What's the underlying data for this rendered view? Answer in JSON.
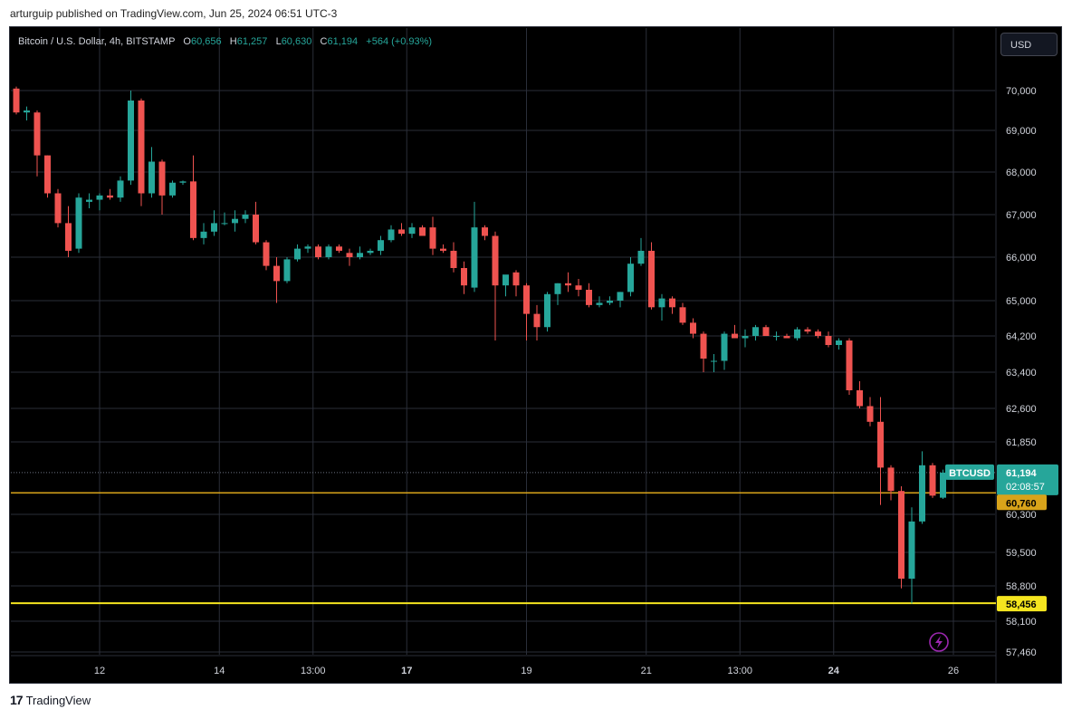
{
  "publisher_line": "arturguip published on TradingView.com, Jun 25, 2024 06:51 UTC-3",
  "legend": {
    "symbol": "Bitcoin / U.S. Dollar, 4h, BITSTAMP",
    "o_label": "O",
    "o_value": "60,656",
    "h_label": "H",
    "h_value": "61,257",
    "l_label": "L",
    "l_value": "60,630",
    "c_label": "C",
    "c_value": "61,194",
    "change": "+564 (+0.93%)"
  },
  "currency_button": "USD",
  "brand": "TradingView",
  "colors": {
    "up": "#26a69a",
    "down": "#ef5350",
    "orange_line": "#d8a31a",
    "yellow_line": "#f5e51f",
    "grid": "#2a2e39",
    "axis_text": "#d1d4dc"
  },
  "chart_data": {
    "type": "candlestick",
    "symbol": "BTCUSD",
    "timeframe": "4h",
    "y_ticks": [
      "70,000",
      "69,000",
      "68,000",
      "67,000",
      "66,000",
      "65,000",
      "64,200",
      "63,400",
      "62,600",
      "61,850",
      "60,300",
      "59,500",
      "58,800",
      "58,100",
      "57,460"
    ],
    "y_tick_values": [
      70000,
      69000,
      68000,
      67000,
      66000,
      65000,
      64200,
      63400,
      62600,
      61850,
      60300,
      59500,
      58800,
      58100,
      57460
    ],
    "x_ticks": [
      {
        "label": "12",
        "bold": false,
        "bar": 8
      },
      {
        "label": "14",
        "bold": false,
        "bar": 19.5
      },
      {
        "label": "13:00",
        "bold": false,
        "bar": 28.5
      },
      {
        "label": "17",
        "bold": true,
        "bar": 37.5
      },
      {
        "label": "19",
        "bold": false,
        "bar": 49
      },
      {
        "label": "21",
        "bold": false,
        "bar": 60.5
      },
      {
        "label": "13:00",
        "bold": false,
        "bar": 69.5
      },
      {
        "label": "24",
        "bold": true,
        "bar": 78.5
      },
      {
        "label": "26",
        "bold": false,
        "bar": 90
      }
    ],
    "price_labels": {
      "last": {
        "symbol": "BTCUSD",
        "price": "61,194",
        "countdown": "02:08:57",
        "value": 61194
      },
      "orange": {
        "price": "60,760",
        "value": 60760
      },
      "yellow": {
        "price": "58,456",
        "value": 58456
      }
    },
    "candles": [
      {
        "o": 70050,
        "h": 70100,
        "l": 69400,
        "c": 69450
      },
      {
        "o": 69450,
        "h": 69600,
        "l": 69250,
        "c": 69500
      },
      {
        "o": 69450,
        "h": 69500,
        "l": 67900,
        "c": 68400
      },
      {
        "o": 68400,
        "h": 68400,
        "l": 67400,
        "c": 67500
      },
      {
        "o": 67500,
        "h": 67600,
        "l": 66700,
        "c": 66800
      },
      {
        "o": 66800,
        "h": 67200,
        "l": 66000,
        "c": 66150
      },
      {
        "o": 66200,
        "h": 67500,
        "l": 66100,
        "c": 67400
      },
      {
        "o": 67300,
        "h": 67500,
        "l": 67150,
        "c": 67350
      },
      {
        "o": 67350,
        "h": 67500,
        "l": 67100,
        "c": 67450
      },
      {
        "o": 67450,
        "h": 67600,
        "l": 67350,
        "c": 67400
      },
      {
        "o": 67400,
        "h": 67900,
        "l": 67300,
        "c": 67800
      },
      {
        "o": 67800,
        "h": 70000,
        "l": 67700,
        "c": 69750
      },
      {
        "o": 69750,
        "h": 69800,
        "l": 67200,
        "c": 67500
      },
      {
        "o": 67500,
        "h": 68600,
        "l": 67400,
        "c": 68250
      },
      {
        "o": 68250,
        "h": 68300,
        "l": 67000,
        "c": 67450
      },
      {
        "o": 67450,
        "h": 67800,
        "l": 67400,
        "c": 67750
      },
      {
        "o": 67750,
        "h": 67800,
        "l": 67700,
        "c": 67780
      },
      {
        "o": 67780,
        "h": 68400,
        "l": 66400,
        "c": 66450
      },
      {
        "o": 66450,
        "h": 66800,
        "l": 66300,
        "c": 66600
      },
      {
        "o": 66600,
        "h": 67100,
        "l": 66500,
        "c": 66800
      },
      {
        "o": 66800,
        "h": 67050,
        "l": 66750,
        "c": 66800
      },
      {
        "o": 66800,
        "h": 67100,
        "l": 66600,
        "c": 66900
      },
      {
        "o": 66900,
        "h": 67100,
        "l": 66800,
        "c": 67000
      },
      {
        "o": 67000,
        "h": 67300,
        "l": 66300,
        "c": 66350
      },
      {
        "o": 66350,
        "h": 66400,
        "l": 65700,
        "c": 65800
      },
      {
        "o": 65800,
        "h": 66000,
        "l": 64950,
        "c": 65450
      },
      {
        "o": 65450,
        "h": 66000,
        "l": 65400,
        "c": 65950
      },
      {
        "o": 65950,
        "h": 66300,
        "l": 65900,
        "c": 66200
      },
      {
        "o": 66200,
        "h": 66300,
        "l": 66100,
        "c": 66250
      },
      {
        "o": 66250,
        "h": 66300,
        "l": 65950,
        "c": 66000
      },
      {
        "o": 66000,
        "h": 66300,
        "l": 65950,
        "c": 66250
      },
      {
        "o": 66250,
        "h": 66300,
        "l": 66100,
        "c": 66150
      },
      {
        "o": 66100,
        "h": 66200,
        "l": 65800,
        "c": 66000
      },
      {
        "o": 66000,
        "h": 66250,
        "l": 65950,
        "c": 66100
      },
      {
        "o": 66100,
        "h": 66200,
        "l": 66050,
        "c": 66150
      },
      {
        "o": 66150,
        "h": 66500,
        "l": 66050,
        "c": 66400
      },
      {
        "o": 66400,
        "h": 66750,
        "l": 66350,
        "c": 66650
      },
      {
        "o": 66650,
        "h": 66800,
        "l": 66500,
        "c": 66550
      },
      {
        "o": 66550,
        "h": 66800,
        "l": 66450,
        "c": 66700
      },
      {
        "o": 66700,
        "h": 66750,
        "l": 66500,
        "c": 66500
      },
      {
        "o": 66700,
        "h": 66950,
        "l": 66050,
        "c": 66200
      },
      {
        "o": 66200,
        "h": 66300,
        "l": 66100,
        "c": 66150
      },
      {
        "o": 66150,
        "h": 66350,
        "l": 65650,
        "c": 65750
      },
      {
        "o": 65750,
        "h": 65900,
        "l": 65150,
        "c": 65350
      },
      {
        "o": 65300,
        "h": 67300,
        "l": 65200,
        "c": 66700
      },
      {
        "o": 66700,
        "h": 66750,
        "l": 66400,
        "c": 66500
      },
      {
        "o": 66500,
        "h": 66600,
        "l": 64100,
        "c": 65350
      },
      {
        "o": 65350,
        "h": 65500,
        "l": 65100,
        "c": 65600
      },
      {
        "o": 65650,
        "h": 65700,
        "l": 65100,
        "c": 65350
      },
      {
        "o": 65350,
        "h": 65400,
        "l": 64100,
        "c": 64700
      },
      {
        "o": 64700,
        "h": 64900,
        "l": 64100,
        "c": 64400
      },
      {
        "o": 64400,
        "h": 65200,
        "l": 64300,
        "c": 65150
      },
      {
        "o": 65150,
        "h": 65400,
        "l": 64900,
        "c": 65400
      },
      {
        "o": 65400,
        "h": 65650,
        "l": 65200,
        "c": 65350
      },
      {
        "o": 65350,
        "h": 65500,
        "l": 65100,
        "c": 65250
      },
      {
        "o": 65250,
        "h": 65400,
        "l": 64850,
        "c": 64900
      },
      {
        "o": 64900,
        "h": 65100,
        "l": 64850,
        "c": 64950
      },
      {
        "o": 64950,
        "h": 65100,
        "l": 64900,
        "c": 65000
      },
      {
        "o": 65000,
        "h": 65200,
        "l": 64850,
        "c": 65200
      },
      {
        "o": 65200,
        "h": 66000,
        "l": 65100,
        "c": 65850
      },
      {
        "o": 65850,
        "h": 66450,
        "l": 65800,
        "c": 66150
      },
      {
        "o": 66150,
        "h": 66350,
        "l": 64800,
        "c": 64850
      },
      {
        "o": 64850,
        "h": 65150,
        "l": 64550,
        "c": 65050
      },
      {
        "o": 65050,
        "h": 65100,
        "l": 64700,
        "c": 64850
      },
      {
        "o": 64850,
        "h": 64950,
        "l": 64450,
        "c": 64500
      },
      {
        "o": 64500,
        "h": 64600,
        "l": 64150,
        "c": 64250
      },
      {
        "o": 64250,
        "h": 64300,
        "l": 63400,
        "c": 63700
      },
      {
        "o": 63650,
        "h": 63800,
        "l": 63400,
        "c": 63650
      },
      {
        "o": 63650,
        "h": 64300,
        "l": 63450,
        "c": 64250
      },
      {
        "o": 64250,
        "h": 64450,
        "l": 64200,
        "c": 64150
      },
      {
        "o": 64150,
        "h": 64350,
        "l": 63950,
        "c": 64200
      },
      {
        "o": 64200,
        "h": 64450,
        "l": 64100,
        "c": 64400
      },
      {
        "o": 64400,
        "h": 64450,
        "l": 64200,
        "c": 64200
      },
      {
        "o": 64200,
        "h": 64300,
        "l": 64100,
        "c": 64200
      },
      {
        "o": 64200,
        "h": 64250,
        "l": 64150,
        "c": 64150
      },
      {
        "o": 64150,
        "h": 64400,
        "l": 64100,
        "c": 64350
      },
      {
        "o": 64350,
        "h": 64400,
        "l": 64250,
        "c": 64300
      },
      {
        "o": 64300,
        "h": 64350,
        "l": 64150,
        "c": 64200
      },
      {
        "o": 64200,
        "h": 64300,
        "l": 63950,
        "c": 64000
      },
      {
        "o": 64000,
        "h": 64150,
        "l": 63900,
        "c": 64100
      },
      {
        "o": 64100,
        "h": 64150,
        "l": 62900,
        "c": 63000
      },
      {
        "o": 63000,
        "h": 63200,
        "l": 62600,
        "c": 62650
      },
      {
        "o": 62650,
        "h": 62850,
        "l": 62200,
        "c": 62300
      },
      {
        "o": 62300,
        "h": 62850,
        "l": 60500,
        "c": 61300
      },
      {
        "o": 61300,
        "h": 61350,
        "l": 60600,
        "c": 60800
      },
      {
        "o": 60800,
        "h": 60900,
        "l": 58750,
        "c": 58950
      },
      {
        "o": 58950,
        "h": 60450,
        "l": 58450,
        "c": 60150
      },
      {
        "o": 60150,
        "h": 61650,
        "l": 60100,
        "c": 61350
      },
      {
        "o": 61350,
        "h": 61400,
        "l": 60650,
        "c": 60700
      },
      {
        "o": 60656,
        "h": 61257,
        "l": 60630,
        "c": 61194
      }
    ]
  }
}
